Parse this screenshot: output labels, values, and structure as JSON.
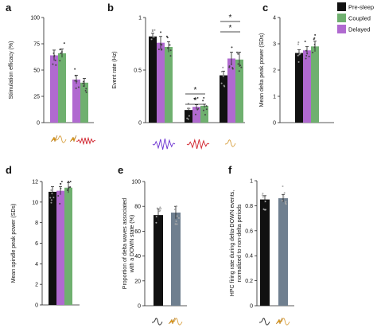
{
  "colors": {
    "pre_sleep": "#111111",
    "coupled": "#6fb06f",
    "delayed": "#b06ad0",
    "slate": "#6f7f8f",
    "error": "#222222",
    "dot": "#bbbbbb",
    "spindle_icon": "#6a2fd0",
    "ripple_icon": "#d0202a",
    "delta_icon": "#d8a040",
    "lightning_icon": "#e8a010"
  },
  "legend": {
    "position": "top-right",
    "entries": [
      {
        "label": "Pre-sleep",
        "color": "#111111"
      },
      {
        "label": "Coupled",
        "color": "#6fb06f"
      },
      {
        "label": "Delayed",
        "color": "#b06ad0"
      }
    ]
  },
  "chart_data": [
    {
      "panel": "a",
      "type": "bar",
      "ylabel": "Stimulation efficacy (%)",
      "ylim": [
        0,
        100
      ],
      "yticks": [
        0,
        25,
        50,
        75,
        100
      ],
      "categories": [
        "delta-triggered",
        "ripple-triggered"
      ],
      "category_icons": [
        "delta-lightning-icon",
        "ripple-lightning-icon"
      ],
      "series": [
        {
          "name": "Delayed",
          "values": [
            64,
            41
          ],
          "errors": [
            5,
            4
          ]
        },
        {
          "name": "Coupled",
          "values": [
            66,
            38
          ],
          "errors": [
            4,
            4
          ]
        }
      ]
    },
    {
      "panel": "b",
      "type": "bar",
      "ylabel": "Event rate (Hz)",
      "ylim": [
        0,
        1
      ],
      "yticks": [
        0,
        0.5,
        1
      ],
      "categories": [
        "spindle",
        "ripple",
        "delta"
      ],
      "category_icons": [
        "spindle-wave-icon",
        "ripple-wave-icon",
        "delta-wave-icon"
      ],
      "series": [
        {
          "name": "Pre-sleep",
          "values": [
            0.82,
            0.12,
            0.45
          ],
          "errors": [
            0.03,
            0.015,
            0.04
          ]
        },
        {
          "name": "Delayed",
          "values": [
            0.76,
            0.15,
            0.61
          ],
          "errors": [
            0.06,
            0.02,
            0.06
          ]
        },
        {
          "name": "Coupled",
          "values": [
            0.72,
            0.16,
            0.6
          ],
          "errors": [
            0.05,
            0.015,
            0.07
          ]
        }
      ],
      "annotations": [
        "*",
        "*",
        "*",
        "*"
      ]
    },
    {
      "panel": "c",
      "type": "bar",
      "ylabel": "Mean  delta peak power (SDs)",
      "ylim": [
        0,
        4
      ],
      "yticks": [
        0,
        1,
        2,
        3,
        4
      ],
      "categories": [
        ""
      ],
      "series": [
        {
          "name": "Pre-sleep",
          "values": [
            2.65
          ],
          "errors": [
            0.12
          ]
        },
        {
          "name": "Delayed",
          "values": [
            2.75
          ],
          "errors": [
            0.14
          ]
        },
        {
          "name": "Coupled",
          "values": [
            2.9
          ],
          "errors": [
            0.2
          ]
        }
      ]
    },
    {
      "panel": "d",
      "type": "bar",
      "ylabel": "Mean spindle peak power (SDs)",
      "ylim": [
        0,
        12
      ],
      "yticks": [
        0,
        2,
        4,
        6,
        8,
        10,
        12
      ],
      "categories": [
        ""
      ],
      "series": [
        {
          "name": "Pre-sleep",
          "values": [
            11.0
          ],
          "errors": [
            0.5
          ]
        },
        {
          "name": "Delayed",
          "values": [
            11.1
          ],
          "errors": [
            0.4
          ]
        },
        {
          "name": "Coupled",
          "values": [
            11.4
          ],
          "errors": [
            0.5
          ]
        }
      ]
    },
    {
      "panel": "e",
      "type": "bar",
      "ylabel": "Proportion of delta waves associated with a DOWN state (%)",
      "ylim": [
        0,
        100
      ],
      "yticks": [
        0,
        20,
        40,
        60,
        80,
        100
      ],
      "categories": [
        "pre-sleep",
        "stimulated"
      ],
      "category_icons": [
        "delta-wave-icon",
        "delta-lightning-icon"
      ],
      "values": [
        73,
        75
      ],
      "errors": [
        5,
        5
      ]
    },
    {
      "panel": "f",
      "type": "bar",
      "ylabel": "HPC firing rate during delta-DOWN events, normalized to non-delta periods",
      "ylim": [
        0,
        1
      ],
      "yticks": [
        0,
        0.2,
        0.4,
        0.6,
        0.8,
        1
      ],
      "categories": [
        "pre-sleep",
        "stimulated"
      ],
      "category_icons": [
        "delta-wave-icon",
        "delta-lightning-icon"
      ],
      "values": [
        0.85,
        0.86
      ],
      "errors": [
        0.03,
        0.03
      ]
    }
  ]
}
